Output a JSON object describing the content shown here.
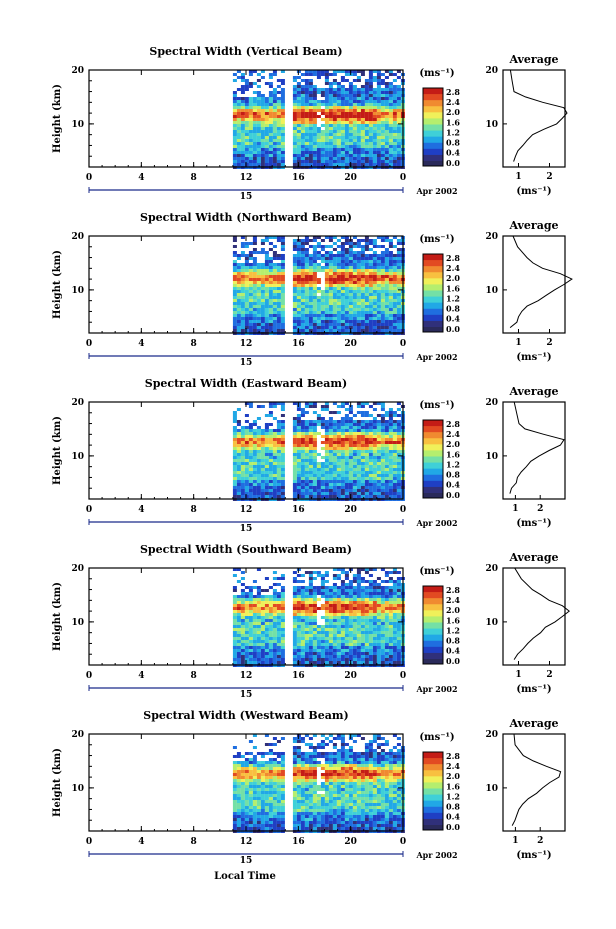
{
  "figure": {
    "x_axis_label": "Local Time",
    "date_label": "Apr 2002",
    "day_label": "15",
    "height_label": "Height (km)",
    "unit_label": "(ms⁻¹)",
    "avg_title": "Average",
    "time_ticks": [
      "0",
      "4",
      "8",
      "12",
      "16",
      "20",
      "0"
    ],
    "height_ticks": [
      "20",
      "10"
    ],
    "colorbar_labels": [
      "2.8",
      "2.4",
      "2.0",
      "1.6",
      "1.2",
      "0.8",
      "0.4",
      "0.0"
    ]
  },
  "panels": [
    {
      "title": "Spectral Width (Vertical Beam)",
      "avg_ticks": [
        "1",
        "2"
      ]
    },
    {
      "title": "Spectral Width (Northward Beam)",
      "avg_ticks": [
        "1",
        "2"
      ]
    },
    {
      "title": "Spectral Width (Eastward Beam)",
      "avg_ticks": [
        "1",
        "2"
      ]
    },
    {
      "title": "Spectral Width (Southward Beam)",
      "avg_ticks": [
        "1",
        "2"
      ]
    },
    {
      "title": "Spectral Width (Westward Beam)",
      "avg_ticks": [
        "1",
        "2"
      ]
    }
  ],
  "chart_data": [
    {
      "type": "heatmap",
      "title": "Spectral Width (Vertical Beam)",
      "xlabel": "Local Time",
      "ylabel": "Height (km)",
      "xlim": [
        0,
        24
      ],
      "ylim": [
        2,
        20
      ],
      "data_start_hour": 11,
      "gap_hours": [
        [
          14.8,
          15.3
        ]
      ],
      "colorbar": {
        "label": "(ms⁻¹)",
        "range": [
          0.0,
          2.8
        ]
      },
      "feature": {
        "peak_height_km": 12,
        "peak_value": 2.6
      }
    },
    {
      "type": "line",
      "title": "Average",
      "xlabel": "(ms⁻¹)",
      "ylabel": "Height (km)",
      "ylim": [
        2,
        20
      ],
      "xlim": [
        0.5,
        2.5
      ],
      "series": [
        {
          "x": [
            0.8,
            0.9,
            1.0,
            1.1,
            1.3,
            1.5,
            1.8,
            2.2,
            2.4,
            2.6,
            2.5,
            1.8,
            1.2,
            0.9,
            0.8,
            0.7
          ],
          "y": [
            3,
            4,
            5,
            6,
            7,
            8,
            9,
            10,
            11,
            12,
            13,
            14,
            15,
            16,
            18,
            20
          ]
        }
      ]
    },
    {
      "type": "heatmap",
      "title": "Spectral Width (Northward Beam)",
      "xlabel": "Local Time",
      "ylabel": "Height (km)",
      "xlim": [
        0,
        24
      ],
      "ylim": [
        2,
        20
      ],
      "data_start_hour": 11,
      "gap_hours": [
        [
          14.8,
          15.3
        ]
      ],
      "colorbar": {
        "label": "(ms⁻¹)",
        "range": [
          0.0,
          2.8
        ]
      },
      "feature": {
        "peak_height_km": 12.5,
        "peak_value": 2.7
      }
    },
    {
      "type": "line",
      "title": "Average",
      "xlabel": "(ms⁻¹)",
      "ylabel": "Height (km)",
      "ylim": [
        2,
        20
      ],
      "xlim": [
        0.5,
        2.5
      ],
      "series": [
        {
          "x": [
            0.7,
            0.9,
            1.0,
            1.1,
            1.3,
            1.6,
            1.9,
            2.2,
            2.5,
            2.7,
            2.4,
            1.8,
            1.5,
            1.3,
            1.0,
            0.8
          ],
          "y": [
            3,
            4,
            5,
            6,
            7,
            8,
            9,
            10,
            11,
            12,
            13,
            14,
            15,
            16,
            18,
            20
          ]
        }
      ]
    },
    {
      "type": "heatmap",
      "title": "Spectral Width (Eastward Beam)",
      "xlabel": "Local Time",
      "ylabel": "Height (km)",
      "xlim": [
        0,
        24
      ],
      "ylim": [
        2,
        20
      ],
      "data_start_hour": 11,
      "gap_hours": [
        [
          14.8,
          15.3
        ]
      ],
      "colorbar": {
        "label": "(ms⁻¹)",
        "range": [
          0.0,
          2.8
        ]
      },
      "feature": {
        "peak_height_km": 13,
        "peak_value": 2.8
      }
    },
    {
      "type": "line",
      "title": "Average",
      "xlabel": "(ms⁻¹)",
      "ylabel": "Height (km)",
      "ylim": [
        2,
        20
      ],
      "xlim": [
        0.5,
        3.0
      ],
      "series": [
        {
          "x": [
            0.8,
            0.9,
            1.0,
            1.1,
            1.2,
            1.4,
            1.6,
            2.0,
            2.4,
            2.8,
            2.9,
            2.2,
            1.4,
            1.1,
            1.0,
            0.9
          ],
          "y": [
            3,
            4,
            5,
            6,
            7,
            8,
            9,
            10,
            11,
            12,
            13,
            14,
            15,
            16,
            18,
            20
          ]
        }
      ]
    },
    {
      "type": "heatmap",
      "title": "Spectral Width (Southward Beam)",
      "xlabel": "Local Time",
      "ylabel": "Height (km)",
      "xlim": [
        0,
        24
      ],
      "ylim": [
        2,
        20
      ],
      "data_start_hour": 11,
      "gap_hours": [
        [
          14.8,
          15.3
        ]
      ],
      "colorbar": {
        "label": "(ms⁻¹)",
        "range": [
          0.0,
          2.8
        ]
      },
      "feature": {
        "peak_height_km": 13,
        "peak_value": 2.6
      }
    },
    {
      "type": "line",
      "title": "Average",
      "xlabel": "(ms⁻¹)",
      "ylabel": "Height (km)",
      "ylim": [
        2,
        20
      ],
      "xlim": [
        0.5,
        2.5
      ],
      "series": [
        {
          "x": [
            0.9,
            1.0,
            1.1,
            1.3,
            1.5,
            1.7,
            1.9,
            2.2,
            2.4,
            2.6,
            2.4,
            2.0,
            1.7,
            1.4,
            1.1,
            0.9
          ],
          "y": [
            3,
            4,
            5,
            6,
            7,
            8,
            9,
            10,
            11,
            12,
            13,
            14,
            15,
            16,
            18,
            20
          ]
        }
      ]
    },
    {
      "type": "heatmap",
      "title": "Spectral Width (Westward Beam)",
      "xlabel": "Local Time",
      "ylabel": "Height (km)",
      "xlim": [
        0,
        24
      ],
      "ylim": [
        2,
        20
      ],
      "data_start_hour": 11,
      "gap_hours": [
        [
          14.8,
          15.3
        ]
      ],
      "colorbar": {
        "label": "(ms⁻¹)",
        "range": [
          0.0,
          2.8
        ]
      },
      "feature": {
        "peak_height_km": 13,
        "peak_value": 2.7
      }
    },
    {
      "type": "line",
      "title": "Average",
      "xlabel": "(ms⁻¹)",
      "ylabel": "Height (km)",
      "ylim": [
        2,
        20
      ],
      "xlim": [
        0.5,
        3.0
      ],
      "series": [
        {
          "x": [
            0.9,
            1.0,
            1.1,
            1.2,
            1.3,
            1.5,
            1.8,
            2.1,
            2.4,
            2.7,
            2.8,
            2.2,
            1.7,
            1.3,
            1.0,
            0.9
          ],
          "y": [
            3,
            4,
            5,
            6,
            7,
            8,
            9,
            10,
            11,
            12,
            13,
            14,
            15,
            16,
            18,
            20
          ]
        }
      ]
    }
  ]
}
